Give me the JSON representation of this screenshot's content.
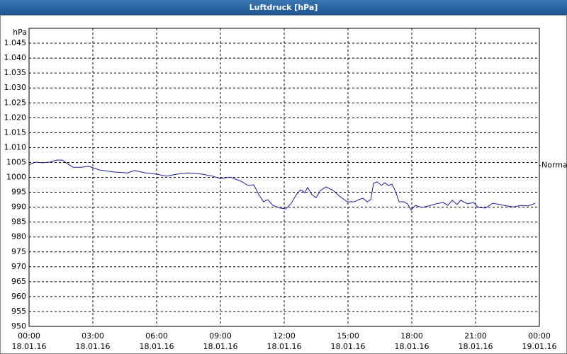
{
  "chart_data": {
    "type": "line",
    "title": "Luftdruck [hPa]",
    "y_unit": "hPa",
    "color": "#1a1aa0",
    "grid": true,
    "xlim": [
      0,
      24
    ],
    "xticks": [
      {
        "value": 0,
        "label": "00:00"
      },
      {
        "value": 3,
        "label": "03:00"
      },
      {
        "value": 6,
        "label": "06:00"
      },
      {
        "value": 9,
        "label": "09:00"
      },
      {
        "value": 12,
        "label": "12:00"
      },
      {
        "value": 15,
        "label": "15:00"
      },
      {
        "value": 18,
        "label": "18:00"
      },
      {
        "value": 21,
        "label": "21:00"
      },
      {
        "value": 24,
        "label": "00:00"
      }
    ],
    "xtick_dates": [
      "18.01.16",
      "18.01.16",
      "18.01.16",
      "18.01.16",
      "18.01.16",
      "18.01.16",
      "18.01.16",
      "18.01.16",
      "19.01.16"
    ],
    "ylim": [
      950,
      1050
    ],
    "yticks": [
      950,
      955,
      960,
      965,
      970,
      975,
      980,
      985,
      990,
      995,
      1000,
      1005,
      {
        "value": 1010,
        "label": "1.010"
      },
      {
        "value": 1015,
        "label": "1.015"
      },
      {
        "value": 1020,
        "label": "1.020"
      },
      {
        "value": 1025,
        "label": "1.025"
      },
      {
        "value": 1030,
        "label": "1.030"
      },
      {
        "value": 1035,
        "label": "1.035"
      },
      {
        "value": 1040,
        "label": "1.040"
      },
      {
        "value": 1045,
        "label": "1.045"
      }
    ],
    "reference": {
      "label": "Normal",
      "value": 1004
    },
    "x": [
      0,
      0.3,
      0.63,
      0.97,
      1.3,
      1.57,
      1.8,
      2.07,
      2.47,
      2.8,
      3.3,
      3.97,
      4.63,
      4.97,
      5.47,
      5.97,
      6.47,
      6.97,
      7.47,
      8.13,
      8.63,
      9.0,
      9.47,
      9.97,
      10.3,
      10.57,
      10.8,
      11.03,
      11.23,
      11.47,
      11.8,
      12.07,
      12.33,
      12.57,
      12.77,
      12.97,
      13.1,
      13.3,
      13.5,
      13.7,
      13.97,
      14.3,
      14.63,
      14.97,
      15.3,
      15.5,
      15.7,
      15.9,
      16.07,
      16.2,
      16.37,
      16.57,
      16.73,
      16.9,
      17.07,
      17.23,
      17.4,
      17.63,
      17.8,
      17.97,
      18.17,
      18.47,
      18.8,
      19.13,
      19.47,
      19.7,
      19.9,
      20.13,
      20.3,
      20.63,
      20.9,
      21.13,
      21.47,
      21.8,
      22.13,
      22.47,
      22.8,
      23.13,
      23.47,
      23.8
    ],
    "values": [
      1004.2,
      1005.1,
      1004.9,
      1005.1,
      1005.8,
      1005.8,
      1004.6,
      1003.4,
      1003.4,
      1003.7,
      1002.5,
      1001.8,
      1001.5,
      1002.3,
      1001.5,
      1001.1,
      1000.4,
      1001.1,
      1001.5,
      1001.1,
      1000.4,
      999.6,
      1000.1,
      998.7,
      997.3,
      997.5,
      994.2,
      991.8,
      992.5,
      990.6,
      989.7,
      989.4,
      991.3,
      994.2,
      995.8,
      994.9,
      996.6,
      994.2,
      993.2,
      995.6,
      996.8,
      995.6,
      993.5,
      991.8,
      991.8,
      992.5,
      993.0,
      991.8,
      992.5,
      998.0,
      998.5,
      997.3,
      998.2,
      997.3,
      997.7,
      995.4,
      991.8,
      991.8,
      991.1,
      989.0,
      990.6,
      989.9,
      990.4,
      991.1,
      991.6,
      990.6,
      992.3,
      990.9,
      992.3,
      991.1,
      991.6,
      989.9,
      989.7,
      991.3,
      990.9,
      990.4,
      990.1,
      990.6,
      990.4,
      991.3
    ]
  }
}
